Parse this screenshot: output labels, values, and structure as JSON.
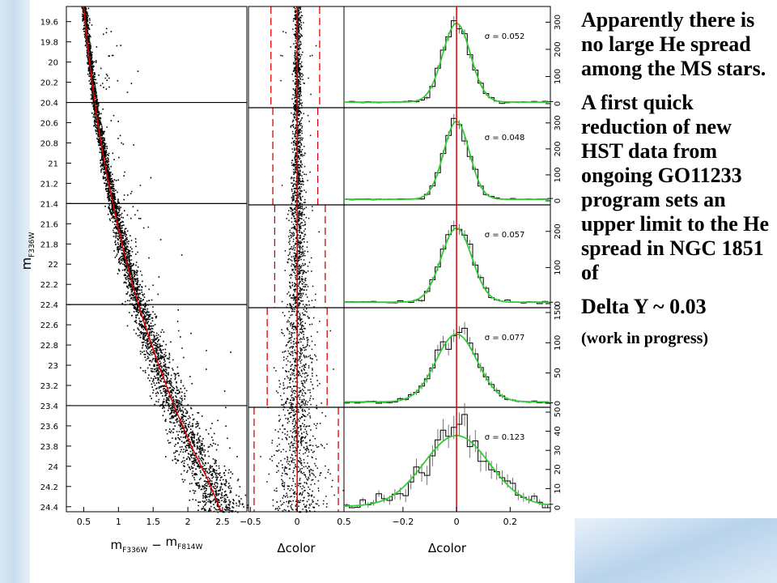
{
  "chart_data": [
    {
      "type": "scatter",
      "xlabel_main": "m",
      "xlabel_sub1": "F336W",
      "xlabel_minus": "−",
      "xlabel_m2": "m",
      "xlabel_sub2": "F814W",
      "ylabel_main": "m",
      "ylabel_sub": "F336W",
      "xlim": [
        0.25,
        2.85
      ],
      "ylim": [
        19.45,
        24.45
      ],
      "x_ticks": [
        0.5,
        1,
        1.5,
        2,
        2.5
      ],
      "x_tick_labels": [
        "0.5",
        "1",
        "1.5",
        "2",
        "2.5"
      ],
      "y_ticks": [
        19.6,
        19.8,
        20,
        20.2,
        20.4,
        20.6,
        20.8,
        21,
        21.2,
        21.4,
        21.6,
        21.8,
        22,
        22.2,
        22.4,
        22.6,
        22.8,
        23,
        23.2,
        23.4,
        23.6,
        23.8,
        24,
        24.2,
        24.4
      ],
      "y_tick_labels": [
        "19.6",
        "19.8",
        "20",
        "20.2",
        "20.4",
        "20.6",
        "20.8",
        "21",
        "21.2",
        "21.4",
        "21.6",
        "21.8",
        "22",
        "22.2",
        "22.4",
        "22.6",
        "22.8",
        "23",
        "23.2",
        "23.4",
        "23.6",
        "23.8",
        "24",
        "24.2",
        "24.4"
      ],
      "bin_edges": [
        19.45,
        20.4,
        21.4,
        22.4,
        23.4,
        24.45
      ],
      "fiducial_line": {
        "color": "#e00000",
        "points": [
          [
            0.5,
            19.45
          ],
          [
            0.55,
            19.8
          ],
          [
            0.62,
            20.2
          ],
          [
            0.7,
            20.6
          ],
          [
            0.8,
            21.0
          ],
          [
            0.92,
            21.4
          ],
          [
            1.05,
            21.8
          ],
          [
            1.2,
            22.2
          ],
          [
            1.38,
            22.6
          ],
          [
            1.58,
            23.0
          ],
          [
            1.8,
            23.4
          ],
          [
            2.05,
            23.8
          ],
          [
            2.3,
            24.15
          ],
          [
            2.48,
            24.45
          ]
        ]
      }
    },
    {
      "type": "scatter",
      "xlabel": "Δcolor",
      "xlim": [
        -0.52,
        0.5
      ],
      "x_ticks": [
        -0.5,
        0,
        0.5
      ],
      "x_tick_labels": [
        "−0.5",
        "0",
        "0.5"
      ],
      "center_line": {
        "x": 0,
        "color": "#e00000"
      },
      "dashed_limits": [
        {
          "bin": 1,
          "lo": -0.28,
          "hi": 0.24
        },
        {
          "bin": 2,
          "lo": -0.26,
          "hi": 0.22
        },
        {
          "bin": 3,
          "lo": -0.24,
          "hi": 0.3
        },
        {
          "bin": 4,
          "lo": -0.32,
          "hi": 0.32
        },
        {
          "bin": 5,
          "lo": -0.46,
          "hi": 0.44
        }
      ],
      "dashed_color": "#e00000"
    },
    {
      "type": "bar",
      "xlabel": "Δcolor",
      "xlim": [
        -0.42,
        0.35
      ],
      "x_ticks": [
        -0.2,
        0,
        0.2
      ],
      "x_tick_labels": [
        "−0.2",
        "0",
        "0.2"
      ],
      "center_line": {
        "x": 0,
        "color": "#e00000"
      },
      "fit_color": "#33cc33",
      "panels": [
        {
          "sigma_label": "σ = 0.052",
          "ymax": 340,
          "y_ticks": [
            0,
            100,
            200,
            300
          ],
          "y_tick_labels": [
            "0",
            "100",
            "200",
            "300"
          ],
          "peak": 290,
          "sigma": 0.052
        },
        {
          "sigma_label": "σ = 0.048",
          "ymax": 340,
          "y_ticks": [
            0,
            100,
            200,
            300
          ],
          "y_tick_labels": [
            "0",
            "100",
            "200",
            "300"
          ],
          "peak": 300,
          "sigma": 0.048
        },
        {
          "sigma_label": "σ = 0.057",
          "ymax": 260,
          "y_ticks": [
            0,
            100,
            200
          ],
          "y_tick_labels": [
            "0",
            "100",
            "200"
          ],
          "peak": 205,
          "sigma": 0.057
        },
        {
          "sigma_label": "σ = 0.077",
          "ymax": 150,
          "y_ticks": [
            0,
            50,
            100,
            150
          ],
          "y_tick_labels": [
            "0",
            "50",
            "100",
            "150"
          ],
          "peak": 112,
          "sigma": 0.077
        },
        {
          "sigma_label": "σ = 0.123",
          "ymax": 50,
          "y_ticks": [
            0,
            10,
            20,
            30,
            40,
            50
          ],
          "y_tick_labels": [
            "0",
            "10",
            "20",
            "30",
            "40",
            "50"
          ],
          "peak": 37,
          "sigma": 0.123
        }
      ]
    }
  ],
  "text": {
    "p1": "Apparently there is no large He spread among the MS stars.",
    "p2": "A first quick reduction of new HST data from ongoing GO11233 program sets an upper limit to the He spread in NGC 1851 of",
    "p3": "Delta Y ~ 0.03",
    "p4": "(work in progress)"
  },
  "colors": {
    "slide_background": "#ffffff",
    "accent_blue": "#c9dcef",
    "fiducial_red": "#e00000",
    "fit_green": "#33cc33"
  }
}
